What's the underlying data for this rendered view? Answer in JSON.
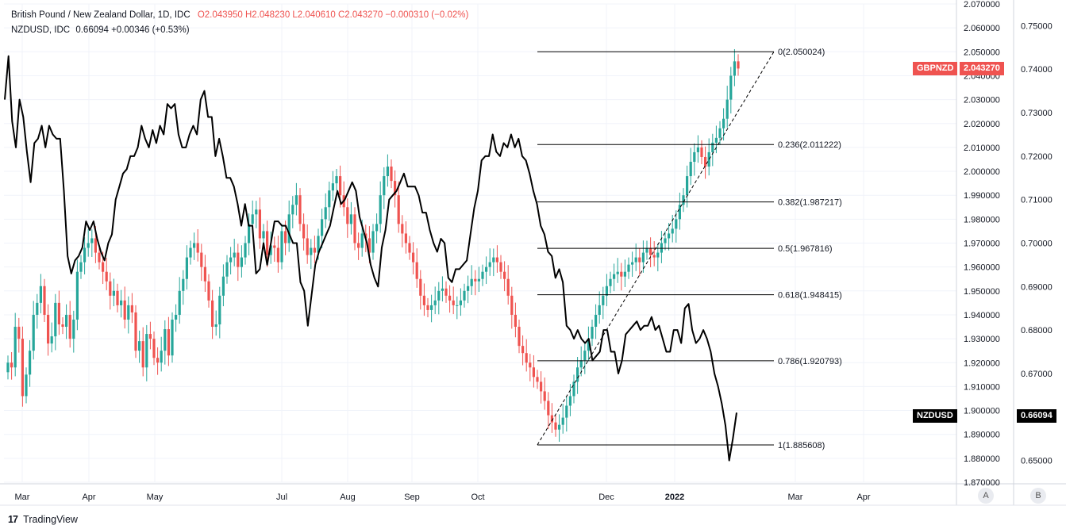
{
  "legend": {
    "main_symbol": "British Pound / New Zealand Dollar, 1D, IDC",
    "main_ohlc": "O2.043950  H2.048230  L2.040610  C2.043270  −0.000310 (−0.02%)",
    "overlay_symbol": "NZDUSD, IDC",
    "overlay_value": "0.66094 +0.00346 (+0.53%)"
  },
  "price_tags": {
    "gbpnzd_label": "GBPNZD",
    "gbpnzd_value": "2.043270",
    "nzdusd_label": "NZDUSD",
    "nzdusd_value": "0.66094"
  },
  "footer": {
    "brand": "TradingView",
    "logo": "17"
  },
  "axis_buttons": {
    "a": "A",
    "b": "B"
  },
  "colors": {
    "up": "#26a69a",
    "down": "#ef5350",
    "overlay": "#000000",
    "fib": "#000000",
    "grid": "#f0f3fa"
  },
  "chart_data": {
    "type": "line",
    "time_axis": [
      "Mar",
      "Apr",
      "May",
      "Jul",
      "Aug",
      "Sep",
      "Oct",
      "Dec",
      "2022",
      "Mar",
      "Apr"
    ],
    "left_axis": {
      "series": "GBPNZD",
      "ylim": [
        1.87,
        2.07
      ],
      "ticks": [
        "2.070000",
        "2.060000",
        "2.050000",
        "2.040000",
        "2.030000",
        "2.020000",
        "2.010000",
        "2.000000",
        "1.990000",
        "1.980000",
        "1.970000",
        "1.960000",
        "1.950000",
        "1.940000",
        "1.930000",
        "1.920000",
        "1.910000",
        "1.900000",
        "1.890000",
        "1.880000",
        "1.870000"
      ]
    },
    "right_axis": {
      "series": "NZDUSD",
      "ylim": [
        0.645,
        0.755
      ],
      "ticks": [
        "0.75000",
        "0.74000",
        "0.73000",
        "0.72000",
        "0.71000",
        "0.70000",
        "0.69000",
        "0.68000",
        "0.67000",
        "0.66000",
        "0.65000"
      ]
    },
    "fibonacci": [
      {
        "level": "0",
        "price": 2.050024,
        "label": "0(2.050024)"
      },
      {
        "level": "0.236",
        "price": 2.011222,
        "label": "0.236(2.011222)"
      },
      {
        "level": "0.382",
        "price": 1.987217,
        "label": "0.382(1.987217)"
      },
      {
        "level": "0.5",
        "price": 1.967816,
        "label": "0.5(1.967816)"
      },
      {
        "level": "0.618",
        "price": 1.948415,
        "label": "0.618(1.948415)"
      },
      {
        "level": "0.786",
        "price": 1.920793,
        "label": "0.786(1.920793)"
      },
      {
        "level": "1",
        "price": 1.885608,
        "label": "1(1.885608)"
      }
    ],
    "series": [
      {
        "name": "GBPNZD",
        "type": "candlestick",
        "close": [
          1.92,
          1.918,
          1.935,
          1.93,
          1.906,
          1.915,
          1.925,
          1.94,
          1.945,
          1.952,
          1.94,
          1.928,
          1.931,
          1.945,
          1.936,
          1.935,
          1.94,
          1.93,
          1.938,
          1.958,
          1.962,
          1.968,
          1.97,
          1.972,
          1.966,
          1.962,
          1.958,
          1.954,
          1.948,
          1.95,
          1.944,
          1.946,
          1.938,
          1.944,
          1.941,
          1.925,
          1.929,
          1.918,
          1.932,
          1.93,
          1.922,
          1.92,
          1.925,
          1.934,
          1.923,
          1.938,
          1.94,
          1.95,
          1.955,
          1.964,
          1.968,
          1.97,
          1.966,
          1.96,
          1.954,
          1.946,
          1.935,
          1.936,
          1.948,
          1.956,
          1.962,
          1.964,
          1.966,
          1.96,
          1.964,
          1.97,
          1.978,
          1.982,
          1.984,
          1.972,
          1.975,
          1.965,
          1.969,
          1.968,
          1.962,
          1.975,
          1.97,
          1.982,
          1.986,
          1.99,
          1.978,
          1.972,
          1.965,
          1.968,
          1.966,
          1.973,
          1.98,
          1.985,
          1.992,
          1.995,
          1.998,
          1.99,
          1.985,
          1.978,
          1.982,
          1.97,
          1.968,
          1.974,
          1.972,
          1.966,
          1.975,
          1.978,
          1.99,
          1.998,
          2.002,
          1.996,
          1.99,
          1.978,
          1.974,
          1.97,
          1.966,
          1.962,
          1.955,
          1.948,
          1.944,
          1.942,
          1.944,
          1.946,
          1.95,
          1.951,
          1.948,
          1.946,
          1.944,
          1.944,
          1.946,
          1.95,
          1.952,
          1.955,
          1.954,
          1.955,
          1.958,
          1.96,
          1.962,
          1.964,
          1.962,
          1.958,
          1.955,
          1.948,
          1.94,
          1.935,
          1.927,
          1.924,
          1.92,
          1.918,
          1.914,
          1.912,
          1.908,
          1.904,
          1.898,
          1.895,
          1.892,
          1.894,
          1.897,
          1.902,
          1.906,
          1.912,
          1.918,
          1.921,
          1.925,
          1.93,
          1.935,
          1.94,
          1.944,
          1.948,
          1.952,
          1.955,
          1.957,
          1.958,
          1.956,
          1.958,
          1.961,
          1.962,
          1.964,
          1.962,
          1.966,
          1.968,
          1.965,
          1.964,
          1.966,
          1.97,
          1.972,
          1.974,
          1.976,
          1.98,
          1.986,
          1.99,
          1.998,
          2.004,
          2.008,
          2.01,
          2.006,
          2.002,
          2.008,
          2.012,
          2.014,
          2.018,
          2.022,
          2.03,
          2.04,
          2.046,
          2.043
        ]
      },
      {
        "name": "NZDUSD",
        "type": "line",
        "values": [
          0.733,
          0.743,
          0.728,
          0.722,
          0.733,
          0.729,
          0.721,
          0.714,
          0.723,
          0.724,
          0.727,
          0.722,
          0.727,
          0.725,
          0.724,
          0.724,
          0.712,
          0.697,
          0.693,
          0.696,
          0.697,
          0.699,
          0.705,
          0.703,
          0.705,
          0.701,
          0.698,
          0.696,
          0.7,
          0.702,
          0.71,
          0.713,
          0.716,
          0.717,
          0.72,
          0.72,
          0.722,
          0.727,
          0.724,
          0.722,
          0.726,
          0.723,
          0.727,
          0.725,
          0.732,
          0.731,
          0.732,
          0.725,
          0.722,
          0.722,
          0.725,
          0.727,
          0.725,
          0.733,
          0.735,
          0.729,
          0.729,
          0.72,
          0.724,
          0.72,
          0.715,
          0.715,
          0.713,
          0.709,
          0.704,
          0.709,
          0.704,
          0.704,
          0.693,
          0.694,
          0.7,
          0.695,
          0.7,
          0.705,
          0.705,
          0.704,
          0.704,
          0.702,
          0.7,
          0.7,
          0.691,
          0.689,
          0.681,
          0.688,
          0.695,
          0.698,
          0.7,
          0.702,
          0.704,
          0.708,
          0.712,
          0.709,
          0.71,
          0.712,
          0.714,
          0.712,
          0.706,
          0.703,
          0.7,
          0.695,
          0.692,
          0.69,
          0.699,
          0.703,
          0.71,
          0.711,
          0.712,
          0.714,
          0.716,
          0.713,
          0.713,
          0.713,
          0.711,
          0.707,
          0.707,
          0.703,
          0.7,
          0.698,
          0.701,
          0.7,
          0.692,
          0.691,
          0.694,
          0.694,
          0.695,
          0.696,
          0.702,
          0.708,
          0.712,
          0.719,
          0.72,
          0.72,
          0.725,
          0.721,
          0.72,
          0.723,
          0.722,
          0.725,
          0.722,
          0.724,
          0.72,
          0.719,
          0.716,
          0.712,
          0.709,
          0.704,
          0.702,
          0.698,
          0.697,
          0.692,
          0.694,
          0.691,
          0.681,
          0.68,
          0.678,
          0.68,
          0.678,
          0.677,
          0.678,
          0.673,
          0.674,
          0.675,
          0.68,
          0.68,
          0.675,
          0.675,
          0.67,
          0.673,
          0.679,
          0.68,
          0.681,
          0.682,
          0.68,
          0.681,
          0.681,
          0.683,
          0.68,
          0.681,
          0.678,
          0.675,
          0.675,
          0.68,
          0.68,
          0.677,
          0.685,
          0.686,
          0.68,
          0.677,
          0.678,
          0.68,
          0.678,
          0.675,
          0.67,
          0.667,
          0.663,
          0.658,
          0.65,
          0.655,
          0.661
        ]
      }
    ]
  }
}
